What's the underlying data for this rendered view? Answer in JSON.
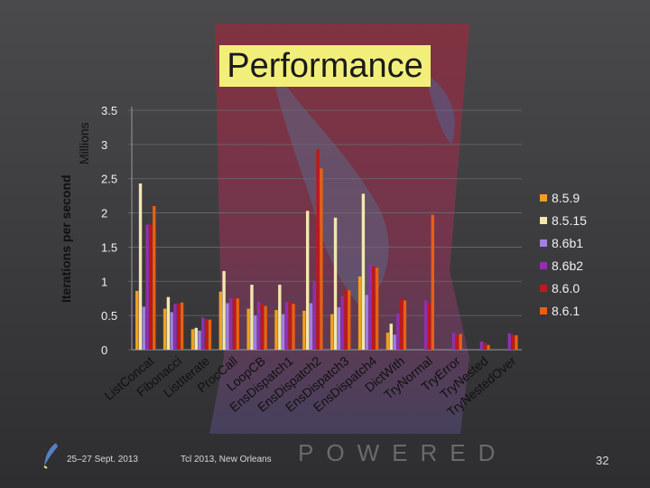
{
  "slide": {
    "title": "Performance",
    "footer_date": "25–27 Sept. 2013",
    "footer_event": "Tcl 2013, New Orleans",
    "page_number": "32",
    "watermark_text": "POWERED"
  },
  "chart_data": {
    "type": "bar",
    "title": "",
    "ylabel": "Iterations per second",
    "ylabel_units": "Millions",
    "ylim": [
      0,
      3.5
    ],
    "yticks": [
      "0",
      "0.5",
      "1",
      "1.5",
      "2",
      "2.5",
      "3",
      "3.5"
    ],
    "grid": true,
    "legend_position": "right",
    "categories": [
      "ListConcat",
      "Fibonacci",
      "ListIterate",
      "ProcCall",
      "LoopCB",
      "EnsDispatch1",
      "EnsDispatch2",
      "EnsDispatch3",
      "EnsDispatch4",
      "DictWith",
      "TryNormal",
      "TryError",
      "TryNested",
      "TryNestedOver"
    ],
    "series": [
      {
        "name": "8.5.9",
        "color": "#f0a020",
        "values": [
          0.86,
          0.6,
          0.3,
          0.85,
          0.6,
          0.58,
          0.57,
          0.52,
          1.07,
          0.25,
          0.0,
          0.0,
          0.0,
          0.0
        ]
      },
      {
        "name": "8.5.15",
        "color": "#f0e8b0",
        "values": [
          2.43,
          0.77,
          0.32,
          1.15,
          0.95,
          0.95,
          2.03,
          1.93,
          2.28,
          0.38,
          0.0,
          0.0,
          0.0,
          0.0
        ]
      },
      {
        "name": "8.6b1",
        "color": "#a080e0",
        "values": [
          0.63,
          0.55,
          0.28,
          0.68,
          0.5,
          0.52,
          0.68,
          0.62,
          0.8,
          0.22,
          0.0,
          0.0,
          0.0,
          0.0
        ]
      },
      {
        "name": "8.6b2",
        "color": "#9030b0",
        "values": [
          1.83,
          0.67,
          0.47,
          0.75,
          0.7,
          0.7,
          1.0,
          0.78,
          1.24,
          0.53,
          0.72,
          0.25,
          0.12,
          0.24
        ]
      },
      {
        "name": "8.6.0",
        "color": "#c01818",
        "values": [
          1.83,
          0.68,
          0.45,
          0.76,
          0.68,
          0.7,
          2.93,
          0.87,
          1.22,
          0.75,
          0.68,
          0.22,
          0.1,
          0.22
        ]
      },
      {
        "name": "8.6.1",
        "color": "#e86010",
        "values": [
          2.1,
          0.69,
          0.44,
          0.75,
          0.64,
          0.67,
          2.65,
          0.87,
          1.2,
          0.72,
          1.97,
          0.23,
          0.07,
          0.21
        ]
      }
    ]
  }
}
